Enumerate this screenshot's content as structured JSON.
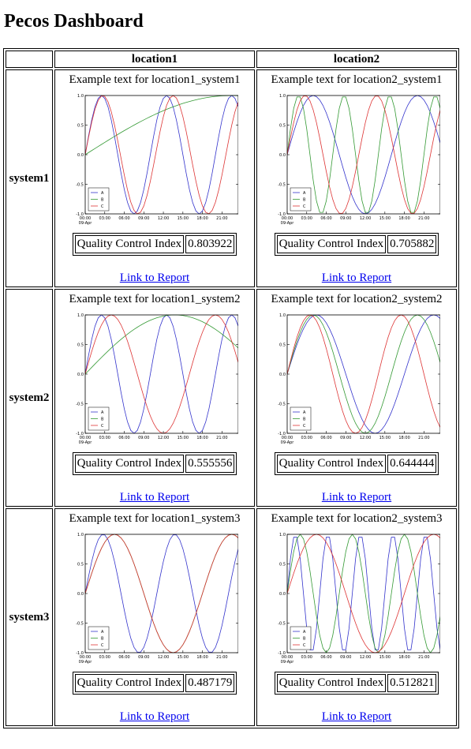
{
  "page": {
    "title": "Pecos Dashboard"
  },
  "columns": [
    "location1",
    "location2"
  ],
  "qci_label": "Quality Control Index",
  "link_label": "Link to Report",
  "rows": [
    {
      "name": "system1",
      "cells": [
        {
          "text": "Example text for location1_system1",
          "qci": "0.803922"
        },
        {
          "text": "Example text for location2_system1",
          "qci": "0.705882"
        }
      ]
    },
    {
      "name": "system2",
      "cells": [
        {
          "text": "Example text for location1_system2",
          "qci": "0.555556"
        },
        {
          "text": "Example text for location2_system2",
          "qci": "0.644444"
        }
      ]
    },
    {
      "name": "system3",
      "cells": [
        {
          "text": "Example text for location1_system3",
          "qci": "0.487179"
        },
        {
          "text": "Example text for location2_system3",
          "qci": "0.512821"
        }
      ]
    }
  ],
  "chart_data": [
    {
      "type": "line",
      "title": "",
      "ylim": [
        -1.0,
        1.0
      ],
      "yticks": [
        "1.0",
        "0.5",
        "0.0",
        "-0.5",
        "-1.0"
      ],
      "xticks": [
        "00:00",
        "03:00",
        "06:00",
        "09:00",
        "12:00",
        "15:00",
        "18:00",
        "21:00"
      ],
      "xsublabel": "09-Apr",
      "legend_position": "lower-left",
      "series": [
        {
          "name": "A",
          "color": "#3333cc",
          "period_h": 10.0
        },
        {
          "name": "B",
          "color": "#339933",
          "period_h": 90.0
        },
        {
          "name": "C",
          "color": "#dd3333",
          "period_h": 10.8
        }
      ]
    },
    {
      "type": "line",
      "title": "",
      "ylim": [
        -1.0,
        1.0
      ],
      "yticks": [
        "1.0",
        "0.5",
        "0.0",
        "-0.5",
        "-1.0"
      ],
      "xticks": [
        "00:00",
        "03:00",
        "06:00",
        "09:00",
        "12:00",
        "15:00",
        "18:00",
        "21:00"
      ],
      "xsublabel": "09-Apr",
      "legend_position": "lower-left",
      "series": [
        {
          "name": "A",
          "color": "#3333cc",
          "period_h": 16.0
        },
        {
          "name": "B",
          "color": "#339933",
          "period_h": 7.0
        },
        {
          "name": "C",
          "color": "#dd3333",
          "period_h": 11.0
        }
      ]
    },
    {
      "type": "line",
      "title": "",
      "ylim": [
        -1.0,
        1.0
      ],
      "yticks": [
        "1.0",
        "0.5",
        "0.0",
        "-0.5",
        "-1.0"
      ],
      "xticks": [
        "00:00",
        "03:00",
        "06:00",
        "09:00",
        "12:00",
        "15:00",
        "18:00",
        "21:00"
      ],
      "xsublabel": "09-Apr",
      "legend_position": "lower-left",
      "series": [
        {
          "name": "A",
          "color": "#3333cc",
          "period_h": 10.0
        },
        {
          "name": "B",
          "color": "#339933",
          "period_h": 55.0
        },
        {
          "name": "C",
          "color": "#dd3333",
          "period_h": 16.0
        }
      ]
    },
    {
      "type": "line",
      "title": "",
      "ylim": [
        -1.0,
        1.0
      ],
      "yticks": [
        "1.0",
        "0.5",
        "0.0",
        "-0.5",
        "-1.0"
      ],
      "xticks": [
        "00:00",
        "03:00",
        "06:00",
        "09:00",
        "12:00",
        "15:00",
        "18:00",
        "21:00"
      ],
      "xsublabel": "09-Apr",
      "legend_position": "lower-left",
      "series": [
        {
          "name": "A",
          "color": "#3333cc",
          "period_h": 18.0
        },
        {
          "name": "B",
          "color": "#339933",
          "period_h": 16.0
        },
        {
          "name": "C",
          "color": "#dd3333",
          "period_h": 14.0
        }
      ]
    },
    {
      "type": "line",
      "title": "",
      "ylim": [
        -1.0,
        1.0
      ],
      "yticks": [
        "1.0",
        "0.5",
        "0.0",
        "-0.5",
        "-1.0"
      ],
      "xticks": [
        "00:00",
        "03:00",
        "06:00",
        "09:00",
        "12:00",
        "15:00",
        "18:00",
        "21:00"
      ],
      "xsublabel": "09-Apr",
      "legend_position": "lower-left",
      "series": [
        {
          "name": "A",
          "color": "#3333cc",
          "period_h": 11.0
        },
        {
          "name": "B",
          "color": "#339933",
          "period_h": 18.0
        },
        {
          "name": "C",
          "color": "#dd3333",
          "period_h": 18.0
        }
      ]
    },
    {
      "type": "line",
      "title": "",
      "ylim": [
        -1.0,
        1.0
      ],
      "yticks": [
        "1.0",
        "0.5",
        "0.0",
        "-0.5",
        "-1.0"
      ],
      "xticks": [
        "00:00",
        "03:00",
        "06:00",
        "09:00",
        "12:00",
        "15:00",
        "18:00",
        "21:00"
      ],
      "xsublabel": "09-Apr",
      "legend_position": "lower-left",
      "series": [
        {
          "name": "A",
          "color": "#3333cc",
          "period_h": 5.0
        },
        {
          "name": "B",
          "color": "#339933",
          "period_h": 8.0
        },
        {
          "name": "C",
          "color": "#dd3333",
          "period_h": 18.0
        }
      ]
    }
  ]
}
